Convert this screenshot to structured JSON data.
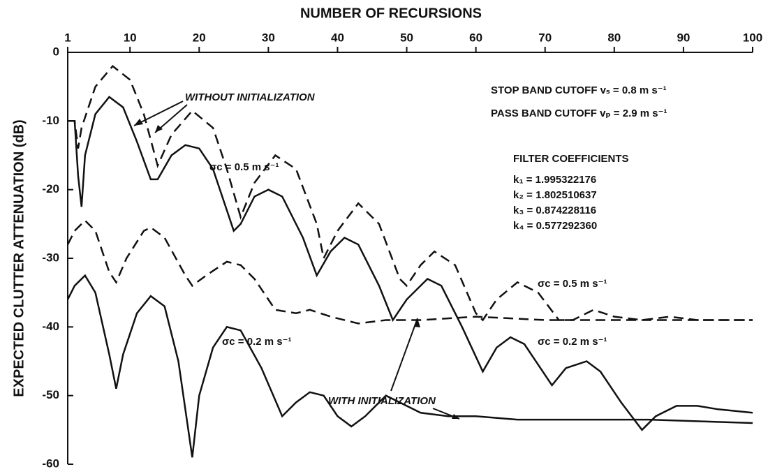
{
  "chart_data": {
    "type": "line",
    "x_label": "NUMBER OF RECURSIONS",
    "y_label": "EXPECTED CLUTTER ATTENUATION (dB)",
    "xlim": [
      1,
      100
    ],
    "xticks": [
      1,
      10,
      20,
      30,
      40,
      50,
      60,
      70,
      80,
      90,
      100
    ],
    "ylim": [
      -60,
      0
    ],
    "yticks": [
      0,
      -10,
      -20,
      -30,
      -40,
      -50,
      -60
    ],
    "grid": false,
    "series": [
      {
        "color": "#111111",
        "dash": true,
        "x": [
          1,
          2,
          2.5,
          3,
          5,
          7.5,
          10,
          12,
          14,
          16,
          19,
          22,
          24,
          26,
          28,
          31,
          34,
          37,
          38,
          40,
          43,
          46,
          49,
          50,
          52,
          54,
          57,
          60,
          61,
          63,
          66,
          69,
          72,
          74,
          77,
          80,
          84,
          88,
          92,
          100
        ],
        "values": [
          -10,
          -10,
          -14,
          -11,
          -5,
          -2,
          -4,
          -9,
          -16.5,
          -12,
          -8.5,
          -11,
          -17,
          -24,
          -19,
          -15,
          -17,
          -25,
          -30,
          -26,
          -22,
          -25,
          -33,
          -34,
          -31,
          -29,
          -31,
          -38,
          -39,
          -36,
          -33.5,
          -35,
          -39,
          -39,
          -37.5,
          -38.5,
          -39,
          -38.5,
          -39,
          -39
        ]
      },
      {
        "color": "#111111",
        "dash": false,
        "x": [
          1,
          2,
          2.5,
          3,
          3.5,
          5,
          7,
          9,
          11,
          13,
          14,
          16,
          18,
          20,
          22,
          25,
          26,
          28,
          30,
          32,
          35,
          37,
          39,
          41,
          43,
          46,
          48,
          50,
          53,
          55,
          58,
          61,
          63,
          65,
          67,
          70,
          71,
          73,
          76,
          78,
          81,
          84,
          86,
          89,
          92,
          95,
          100
        ],
        "values": [
          -10,
          -10,
          -18,
          -22.5,
          -15,
          -9,
          -6.5,
          -8,
          -13,
          -18.5,
          -18.5,
          -15,
          -13.5,
          -14,
          -17,
          -26,
          -25,
          -21,
          -20,
          -21,
          -27,
          -32.5,
          -29,
          -27,
          -28,
          -34,
          -39,
          -36,
          -33,
          -34,
          -40,
          -46.5,
          -43,
          -41.5,
          -42.5,
          -47,
          -48.5,
          -46,
          -45,
          -46.5,
          -51,
          -55,
          -53,
          -51.5,
          -51.5,
          -52,
          -52.5
        ]
      },
      {
        "color": "#111111",
        "dash": true,
        "x": [
          1,
          2,
          3.5,
          5,
          7,
          8,
          9.5,
          12,
          13,
          15,
          18,
          19,
          21,
          24,
          26,
          28,
          31,
          34,
          36,
          39,
          43,
          47,
          52,
          60,
          70,
          80,
          100
        ],
        "values": [
          -28,
          -26,
          -24.5,
          -26,
          -32,
          -33.5,
          -30,
          -26,
          -25.5,
          -27,
          -32.5,
          -34,
          -32.5,
          -30.5,
          -31,
          -33,
          -37.5,
          -38,
          -37.5,
          -38.5,
          -39.5,
          -39,
          -39,
          -38.5,
          -39,
          -39,
          -39
        ]
      },
      {
        "color": "#111111",
        "dash": false,
        "x": [
          1,
          2,
          3.5,
          5,
          7,
          8,
          9,
          11,
          13,
          15,
          17,
          19,
          20,
          22,
          24,
          26,
          29,
          32,
          34,
          36,
          38,
          40,
          42,
          44,
          47,
          49,
          52,
          56,
          60,
          66,
          75,
          85,
          100
        ],
        "values": [
          -36,
          -34,
          -32.5,
          -35,
          -44,
          -49,
          -44,
          -38,
          -35.5,
          -37,
          -45,
          -59,
          -50,
          -43,
          -40,
          -40.5,
          -46,
          -53,
          -51,
          -49.5,
          -50,
          -53,
          -54.5,
          -53,
          -50,
          -51,
          -52.5,
          -53,
          -53,
          -53.5,
          -53.5,
          -53.5,
          -54
        ]
      }
    ],
    "annotations": [
      "WITHOUT INITIALIZATION",
      "WITH INITIALIZATION",
      "STOP BAND CUTOFF vₛ = 0.8 m s⁻¹",
      "PASS BAND CUTOFF vₚ = 2.9 m s⁻¹",
      "FILTER COEFFICIENTS",
      "k₁ = 1.995322176",
      "k₂ = 1.802510637",
      "k₃ = 0.874228116",
      "k₄ = 0.577292360",
      "σc = 0.5 m s⁻¹",
      "σc = 0.5 m s⁻¹",
      "σc = 0.2 m s⁻¹",
      "σc = 0.2 m s⁻¹"
    ]
  }
}
